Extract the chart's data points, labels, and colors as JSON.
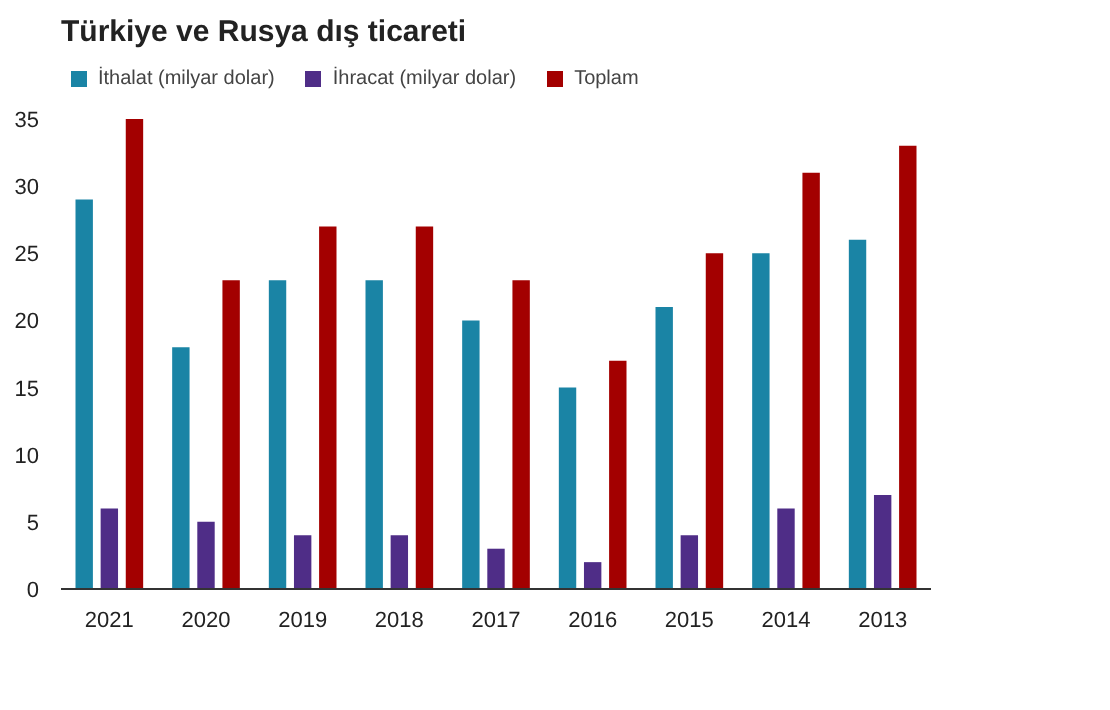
{
  "chart_data": {
    "type": "bar",
    "title": "Türkiye ve Rusya dış ticareti",
    "categories": [
      "2021",
      "2020",
      "2019",
      "2018",
      "2017",
      "2016",
      "2015",
      "2014",
      "2013"
    ],
    "series": [
      {
        "name": "İthalat (milyar dolar)",
        "color": "#1a84a5",
        "values": [
          29,
          18,
          23,
          23,
          20,
          15,
          21,
          25,
          26
        ]
      },
      {
        "name": "İhracat (milyar dolar)",
        "color": "#4f2d87",
        "values": [
          6,
          5,
          4,
          4,
          3,
          2,
          4,
          6,
          7
        ]
      },
      {
        "name": "Toplam",
        "color": "#a30000",
        "values": [
          35,
          23,
          27,
          27,
          23,
          17,
          25,
          31,
          33
        ]
      }
    ],
    "ylim": [
      0,
      35
    ],
    "yticks": [
      0,
      5,
      10,
      15,
      20,
      25,
      30,
      35
    ],
    "grid": false,
    "legend": "top left"
  }
}
